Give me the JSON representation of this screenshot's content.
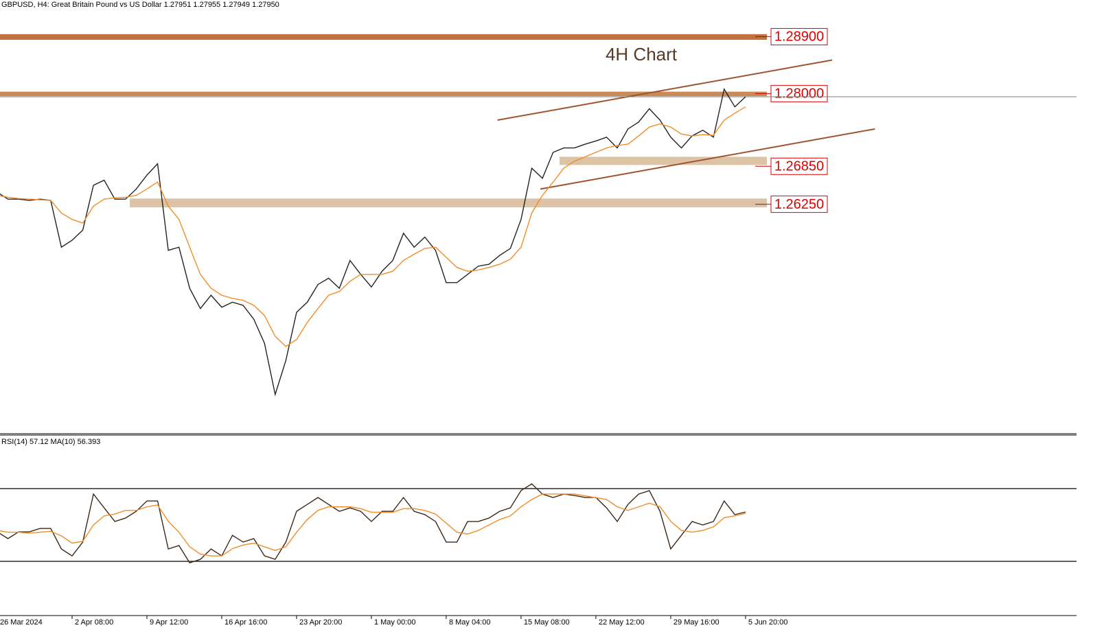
{
  "chart_data": [
    {
      "type": "line",
      "title": "GBPUSD, H4:  Great Britain Pound vs US Dollar  1.27951 1.27955 1.27949 1.27950",
      "annotation": "4H Chart",
      "categories": [
        "26 Mar 2024",
        null,
        null,
        null,
        null,
        null,
        null,
        "2 Apr 08:00",
        null,
        null,
        null,
        null,
        null,
        null,
        "9 Apr 12:00",
        null,
        null,
        null,
        null,
        null,
        null,
        "16 Apr 16:00",
        null,
        null,
        null,
        null,
        null,
        null,
        "23 Apr 20:00",
        null,
        null,
        null,
        null,
        null,
        null,
        "1 May 00:00",
        null,
        null,
        null,
        null,
        null,
        null,
        "8 May 04:00",
        null,
        null,
        null,
        null,
        null,
        null,
        "15 May 08:00",
        null,
        null,
        null,
        null,
        null,
        null,
        "22 May 12:00",
        null,
        null,
        null,
        null,
        null,
        null,
        "29 May 16:00",
        null,
        null,
        null,
        null,
        null,
        null,
        "5 Jun 20:00"
      ],
      "series": [
        {
          "color": "#222222",
          "values": [
            1.2644,
            1.2633,
            1.2633,
            1.2631,
            1.2633,
            1.2631,
            1.2557,
            1.2568,
            1.2584,
            1.2655,
            1.2663,
            1.2633,
            1.2633,
            1.2649,
            1.2671,
            1.2689,
            1.2552,
            1.2557,
            1.2492,
            1.246,
            1.2481,
            1.2462,
            1.247,
            1.2465,
            1.2443,
            1.2405,
            1.2324,
            1.2378,
            1.2454,
            1.247,
            1.2498,
            1.2508,
            1.2492,
            1.2536,
            1.2514,
            1.2494,
            1.2519,
            1.2536,
            1.2579,
            1.2557,
            1.2573,
            1.2552,
            1.2501,
            1.2501,
            1.2514,
            1.2527,
            1.253,
            1.2544,
            1.2555,
            1.2601,
            1.2682,
            1.2666,
            1.2707,
            1.2714,
            1.2714,
            1.272,
            1.2725,
            1.2731,
            1.2714,
            1.2744,
            1.2755,
            1.2776,
            1.2758,
            1.2731,
            1.2714,
            1.2733,
            1.2742,
            1.2731,
            1.2807,
            1.2779,
            1.2795
          ]
        },
        {
          "color": "#f28c28",
          "values": [
            1.2639,
            1.2636,
            1.2634,
            1.2633,
            1.2632,
            1.2631,
            1.2611,
            1.2601,
            1.2595,
            1.2622,
            1.2633,
            1.2635,
            1.2636,
            1.2639,
            1.2649,
            1.266,
            1.2622,
            1.2601,
            1.2557,
            1.2514,
            1.2492,
            1.2481,
            1.2476,
            1.2473,
            1.2465,
            1.2449,
            1.2416,
            1.24,
            1.2411,
            1.2438,
            1.246,
            1.2481,
            1.2487,
            1.2503,
            1.2514,
            1.2514,
            1.2514,
            1.2519,
            1.2536,
            1.2546,
            1.2555,
            1.2557,
            1.2541,
            1.2525,
            1.2519,
            1.2521,
            1.2525,
            1.253,
            1.2538,
            1.2557,
            1.2611,
            1.2639,
            1.266,
            1.2682,
            1.2693,
            1.27,
            1.2707,
            1.2714,
            1.2718,
            1.272,
            1.2733,
            1.2747,
            1.2752,
            1.2747,
            1.2736,
            1.2733,
            1.2735,
            1.2734,
            1.2758,
            1.2769,
            1.2779
          ]
        }
      ],
      "ylim": [
        1.2262,
        1.2948
      ],
      "levels": [
        {
          "value": 1.289,
          "label": "1.28900",
          "band": [
            1.2885,
            1.2894
          ],
          "color": "#c0733e"
        },
        {
          "value": 1.28,
          "label": "1.28000",
          "band": [
            1.2796,
            1.2803
          ],
          "color": "#c98a55"
        },
        {
          "value": 1.2685,
          "label": "1.26850",
          "band": [
            1.2687,
            1.27
          ],
          "start": 52.6,
          "color": "#dcc3a6"
        },
        {
          "value": 1.2625,
          "label": "1.26250",
          "band": [
            1.262,
            1.2634
          ],
          "start": 12.4,
          "color": "#dcc3a6"
        }
      ],
      "trendlines": [
        {
          "start": [
            46.8,
            1.2758
          ],
          "end": [
            78.1,
            1.2853
          ],
          "color": "#a0522d"
        },
        {
          "start": [
            50.8,
            1.2649
          ],
          "end": [
            82.1,
            1.2744
          ],
          "color": "#a0522d"
        }
      ]
    },
    {
      "type": "line",
      "title": "RSI(14) 57.12 MA(10) 56.393",
      "series": [
        {
          "color": "#3b2716",
          "values": [
            46.2,
            42.5,
            46.2,
            46.2,
            48.1,
            48.1,
            36.8,
            33.0,
            40.6,
            67.0,
            59.4,
            51.9,
            53.8,
            57.5,
            63.2,
            63.2,
            36.8,
            38.7,
            29.2,
            31.1,
            36.8,
            33.0,
            44.3,
            40.6,
            42.5,
            33.0,
            31.1,
            40.6,
            57.5,
            61.3,
            65.1,
            61.3,
            57.5,
            59.4,
            57.5,
            51.9,
            57.5,
            57.5,
            65.1,
            57.5,
            55.7,
            51.9,
            40.6,
            40.6,
            51.9,
            51.9,
            53.8,
            57.5,
            59.4,
            68.9,
            72.6,
            67.0,
            65.1,
            67.0,
            66.2,
            65.1,
            65.1,
            59.4,
            51.9,
            61.3,
            67.0,
            68.9,
            57.5,
            36.8,
            44.3,
            51.9,
            50.0,
            51.9,
            63.2,
            55.7,
            57.12
          ]
        },
        {
          "color": "#f28c28",
          "values": [
            47,
            46,
            46,
            45.5,
            46,
            46.5,
            44,
            40,
            41,
            50,
            55,
            56,
            58,
            58,
            60,
            61,
            52,
            46,
            38,
            34,
            33,
            33,
            37,
            39,
            40,
            38,
            36,
            38,
            46,
            53,
            58,
            60,
            60,
            60,
            59,
            57,
            57,
            57,
            59,
            59,
            58,
            56,
            51,
            46,
            45,
            47,
            50,
            53,
            55,
            60,
            64,
            67,
            67,
            67,
            67,
            66,
            65,
            64,
            60,
            58,
            60,
            62,
            60,
            52,
            47,
            46,
            47,
            49,
            54,
            55,
            56.393
          ]
        }
      ],
      "ylim": [
        0,
        100
      ],
      "levels": [
        30,
        70
      ]
    }
  ]
}
